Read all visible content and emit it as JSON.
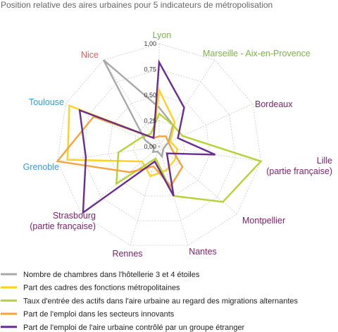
{
  "chart_data": {
    "type": "radar",
    "title": "Position relative des aires urbaines pour 5 indicateurs de métropolisation",
    "range": [
      0,
      1
    ],
    "ticks": [
      "0,00",
      "0,25",
      "0,50",
      "0,75",
      "1,00"
    ],
    "grid": true,
    "legend_position": "bottom",
    "axes": [
      {
        "label": "Lyon",
        "color": "#7cb342"
      },
      {
        "label": "Marseille - Aix-en-Provence",
        "color": "#7cb342"
      },
      {
        "label": "Bordeaux",
        "color": "#7b1f6a"
      },
      {
        "label": "Lille\n(partie française)",
        "color": "#7b1f6a"
      },
      {
        "label": "Montpellier",
        "color": "#7b1f6a"
      },
      {
        "label": "Nantes",
        "color": "#7b1f6a"
      },
      {
        "label": "Rennes",
        "color": "#7b1f6a"
      },
      {
        "label": "Strasbourg\n(partie française)",
        "color": "#7b1f6a"
      },
      {
        "label": "Grenoble",
        "color": "#3a9bd6"
      },
      {
        "label": "Toulouse",
        "color": "#3a9bd6"
      },
      {
        "label": "Nice",
        "color": "#e85c5c"
      }
    ],
    "series": [
      {
        "name": "Nombre de chambres dans l'hôtellerie 3 et 4 étoiles",
        "color": "#a8a8a8",
        "values": [
          0.38,
          0.25,
          0.1,
          0.05,
          0.05,
          0.1,
          0.05,
          0.08,
          0.05,
          0.15,
          1.0
        ]
      },
      {
        "name": "Part des cadres des fonctions métropolitaines",
        "color": "#ffd21f",
        "values": [
          0.55,
          0.28,
          0.12,
          0.18,
          0.2,
          0.24,
          0.3,
          0.22,
          0.9,
          0.96,
          0.1
        ]
      },
      {
        "name": "Taux d'entrée des actifs dans l'aire urbaine au regard des migrations alternantes",
        "color": "#b5d334",
        "values": [
          0.32,
          0.25,
          0.25,
          1.0,
          0.82,
          0.5,
          0.12,
          0.55,
          0.4,
          0.2,
          0.15
        ]
      },
      {
        "name": "Part de l'emploi dans les secteurs innovants",
        "color": "#f5a33b",
        "values": [
          0.1,
          0.12,
          0.1,
          0.12,
          0.3,
          0.4,
          0.2,
          0.38,
          1.0,
          0.7,
          0.1
        ]
      },
      {
        "name": "Part de l'emploi de l'aire urbaine contrôlé par un groupe étranger",
        "color": "#6a2c91",
        "values": [
          0.82,
          0.45,
          0.2,
          0.55,
          0.1,
          0.5,
          0.15,
          0.98,
          0.72,
          0.85,
          0.1
        ]
      }
    ]
  }
}
